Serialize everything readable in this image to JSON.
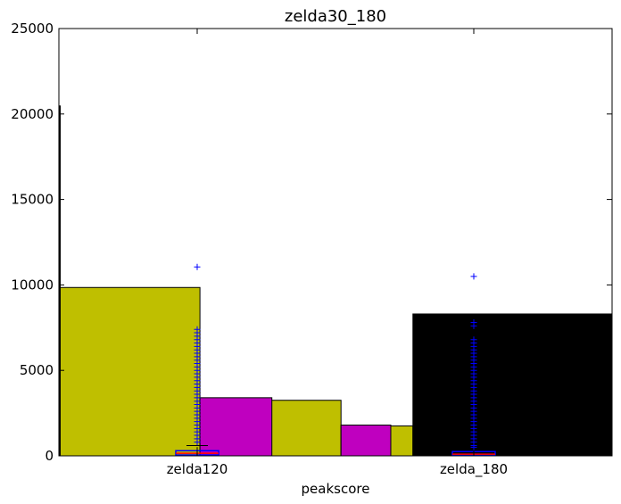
{
  "chart_data": {
    "type": "bar",
    "title": "zelda30_180",
    "xlabel": "peakscore",
    "ylabel": "",
    "ylim": [
      0,
      25000
    ],
    "yticks": [
      0,
      5000,
      10000,
      15000,
      20000,
      25000
    ],
    "xlim": [
      0.5,
      2.5
    ],
    "categories": [
      "zelda120",
      "zelda_180"
    ],
    "category_positions": [
      1,
      2
    ],
    "bars": [
      {
        "x0": 0.5,
        "x1": 1.01,
        "value": 9850,
        "color": "#bfbf00"
      },
      {
        "x0": 1.01,
        "x1": 1.52,
        "value": 3250,
        "color": "#bfbf00"
      },
      {
        "x0": 1.52,
        "x1": 1.78,
        "value": 1750,
        "color": "#bfbf00"
      },
      {
        "x0": 1.78,
        "x1": 2.5,
        "value": 8300,
        "color": "#000000"
      },
      {
        "x0": 1.01,
        "x1": 1.27,
        "value": 3400,
        "color": "#bf00bf"
      },
      {
        "x0": 1.52,
        "x1": 1.7,
        "value": 1800,
        "color": "#bf00bf"
      }
    ],
    "left_edge_line": {
      "value": 20500
    },
    "boxplots": [
      {
        "position": 1,
        "whisker_low": 0,
        "q1": 50,
        "median": 150,
        "q3": 300,
        "whisker_high": 600,
        "outliers": [
          11050,
          7400,
          7200,
          7000,
          6800,
          6600,
          6400,
          6200,
          6000,
          5800,
          5600,
          5400,
          5200,
          5000,
          4800,
          4600,
          4400,
          4200,
          4000,
          3800,
          3600,
          3400,
          3200,
          3000,
          2800,
          2600,
          2400,
          2200,
          2000,
          1800,
          1600,
          1400,
          1200,
          1000,
          800
        ],
        "box_color": "#0000ff",
        "median_color": "#ff0000"
      },
      {
        "position": 2,
        "whisker_low": 0,
        "q1": 30,
        "median": 100,
        "q3": 250,
        "whisker_high": 400,
        "outliers": [
          10500,
          7800,
          7600,
          6800,
          6600,
          6400,
          6200,
          6000,
          5800,
          5600,
          5400,
          5200,
          5000,
          4800,
          4600,
          4400,
          4200,
          4000,
          3800,
          3600,
          3400,
          3200,
          3000,
          2800,
          2600,
          2400,
          2200,
          2000,
          1800,
          1600,
          1400,
          1200,
          1000,
          800,
          600,
          500
        ],
        "box_color": "#0000ff",
        "median_color": "#ff0000"
      }
    ],
    "grid": false,
    "legend": "none"
  }
}
